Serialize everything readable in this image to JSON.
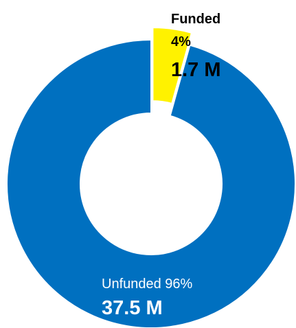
{
  "chart_data": {
    "type": "pie",
    "variant": "donut",
    "slices": [
      {
        "label": "Funded",
        "percent_label": "4%",
        "amount_label": "1.7 M",
        "value": 1.7,
        "color": "#FFF200"
      },
      {
        "label": "Unfunded",
        "percent_label": "96%",
        "amount_label": "37.5 M",
        "value": 37.5,
        "color": "#0070C0"
      }
    ],
    "legend": "none"
  }
}
